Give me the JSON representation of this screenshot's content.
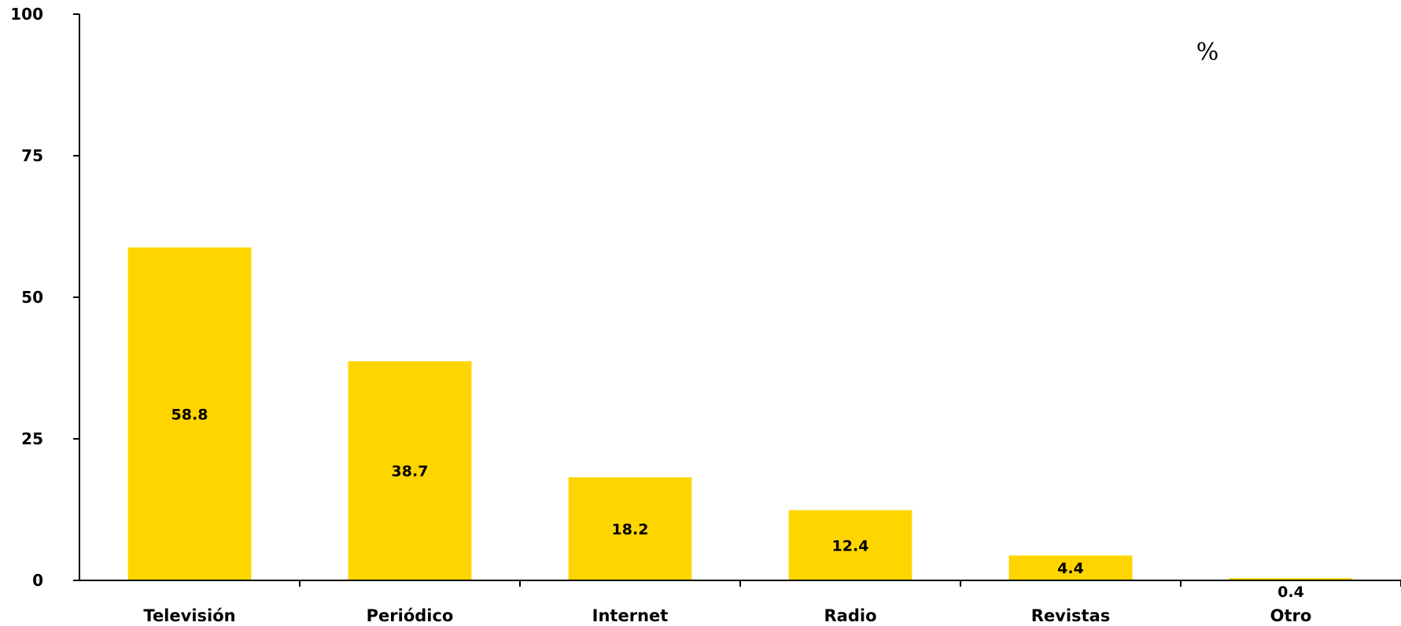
{
  "chart_data": {
    "type": "bar",
    "categories": [
      "Televisión",
      "Periódico",
      "Internet",
      "Radio",
      "Revistas",
      "Otro"
    ],
    "values": [
      58.8,
      38.7,
      18.2,
      12.4,
      4.4,
      0.4
    ],
    "value_labels": [
      "58.8",
      "38.7",
      "18.2",
      "12.4",
      "4.4",
      "0.4"
    ],
    "unit": "%",
    "title": "",
    "xlabel": "",
    "ylabel": "",
    "ylim": [
      0,
      100
    ],
    "yticks": [
      0,
      25,
      50,
      75,
      100
    ],
    "ytick_labels": [
      "0",
      "25",
      "50",
      "75",
      "100"
    ],
    "grid": false,
    "legend": "none",
    "bar_color": "#FFD500"
  }
}
